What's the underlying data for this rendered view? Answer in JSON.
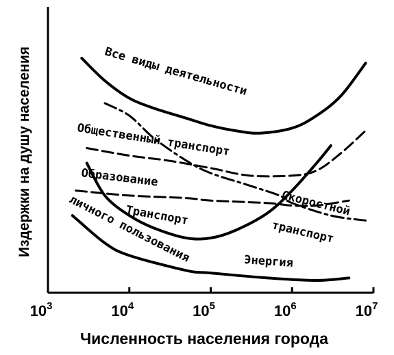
{
  "chart_data": {
    "type": "line",
    "xlabel": "Численность населения города",
    "ylabel": "Издержки на душу населения",
    "x_scale": "log",
    "xlim": [
      1000,
      10000000
    ],
    "x_ticks": [
      {
        "base": "10",
        "exp": "3",
        "value": 1000
      },
      {
        "base": "10",
        "exp": "4",
        "value": 10000
      },
      {
        "base": "10",
        "exp": "5",
        "value": 100000
      },
      {
        "base": "10",
        "exp": "6",
        "value": 1000000
      },
      {
        "base": "10",
        "exp": "7",
        "value": 10000000
      }
    ],
    "ylim": [
      0,
      100
    ],
    "y_ticks_labeled": false,
    "grid": false,
    "series": [
      {
        "name": "Все виды деятельности",
        "style": "solid",
        "points": [
          [
            2600,
            89
          ],
          [
            5000,
            80
          ],
          [
            10000,
            73
          ],
          [
            20000,
            69
          ],
          [
            50000,
            65
          ],
          [
            100000,
            62
          ],
          [
            200000,
            60
          ],
          [
            400000,
            59
          ],
          [
            1000000,
            61
          ],
          [
            2000000,
            66
          ],
          [
            4000000,
            74
          ],
          [
            8000000,
            87
          ]
        ]
      },
      {
        "name": "Общественный транспорт",
        "style": "dashed",
        "points": [
          [
            3000,
            53
          ],
          [
            10000,
            50
          ],
          [
            30000,
            48
          ],
          [
            100000,
            45
          ],
          [
            300000,
            42
          ],
          [
            1000000,
            42
          ],
          [
            2000000,
            44
          ],
          [
            4000000,
            51
          ],
          [
            8000000,
            60
          ]
        ]
      },
      {
        "name": "Образование",
        "style": "dashed",
        "points": [
          [
            2200,
            36
          ],
          [
            10000,
            34
          ],
          [
            50000,
            33
          ],
          [
            100000,
            32
          ],
          [
            500000,
            31
          ],
          [
            1000000,
            30
          ],
          [
            2000000,
            30
          ],
          [
            5000000,
            32
          ]
        ]
      },
      {
        "name": "Скоростной транспорт",
        "style": "dashdot",
        "points": [
          [
            5000,
            71
          ],
          [
            10000,
            66
          ],
          [
            20000,
            57
          ],
          [
            50000,
            48
          ],
          [
            100000,
            43
          ],
          [
            300000,
            38
          ],
          [
            700000,
            34
          ],
          [
            1000000,
            31
          ],
          [
            3000000,
            26
          ],
          [
            8000000,
            24
          ]
        ]
      },
      {
        "name": "Транспорт личного пользования",
        "style": "solid",
        "points": [
          [
            3000,
            47
          ],
          [
            5000,
            34
          ],
          [
            10000,
            26
          ],
          [
            20000,
            21
          ],
          [
            50000,
            17
          ],
          [
            100000,
            17
          ],
          [
            200000,
            20
          ],
          [
            500000,
            27
          ],
          [
            1000000,
            36
          ],
          [
            2000000,
            47
          ],
          [
            3000000,
            54
          ]
        ]
      },
      {
        "name": "Энергия",
        "style": "solid",
        "points": [
          [
            2000,
            26
          ],
          [
            5000,
            15
          ],
          [
            10000,
            10
          ],
          [
            50000,
            4
          ],
          [
            100000,
            3
          ],
          [
            500000,
            1
          ],
          [
            2000000,
            0
          ],
          [
            5000000,
            1
          ]
        ]
      }
    ],
    "annotations": [
      {
        "text": "Все виды деятельности"
      },
      {
        "text": "Общественный транспорт"
      },
      {
        "text": "Образование"
      },
      {
        "text": "Скоростной"
      },
      {
        "text": "транспорт"
      },
      {
        "text": "Транспорт"
      },
      {
        "text": "личного пользования"
      },
      {
        "text": "Энергия"
      }
    ]
  }
}
